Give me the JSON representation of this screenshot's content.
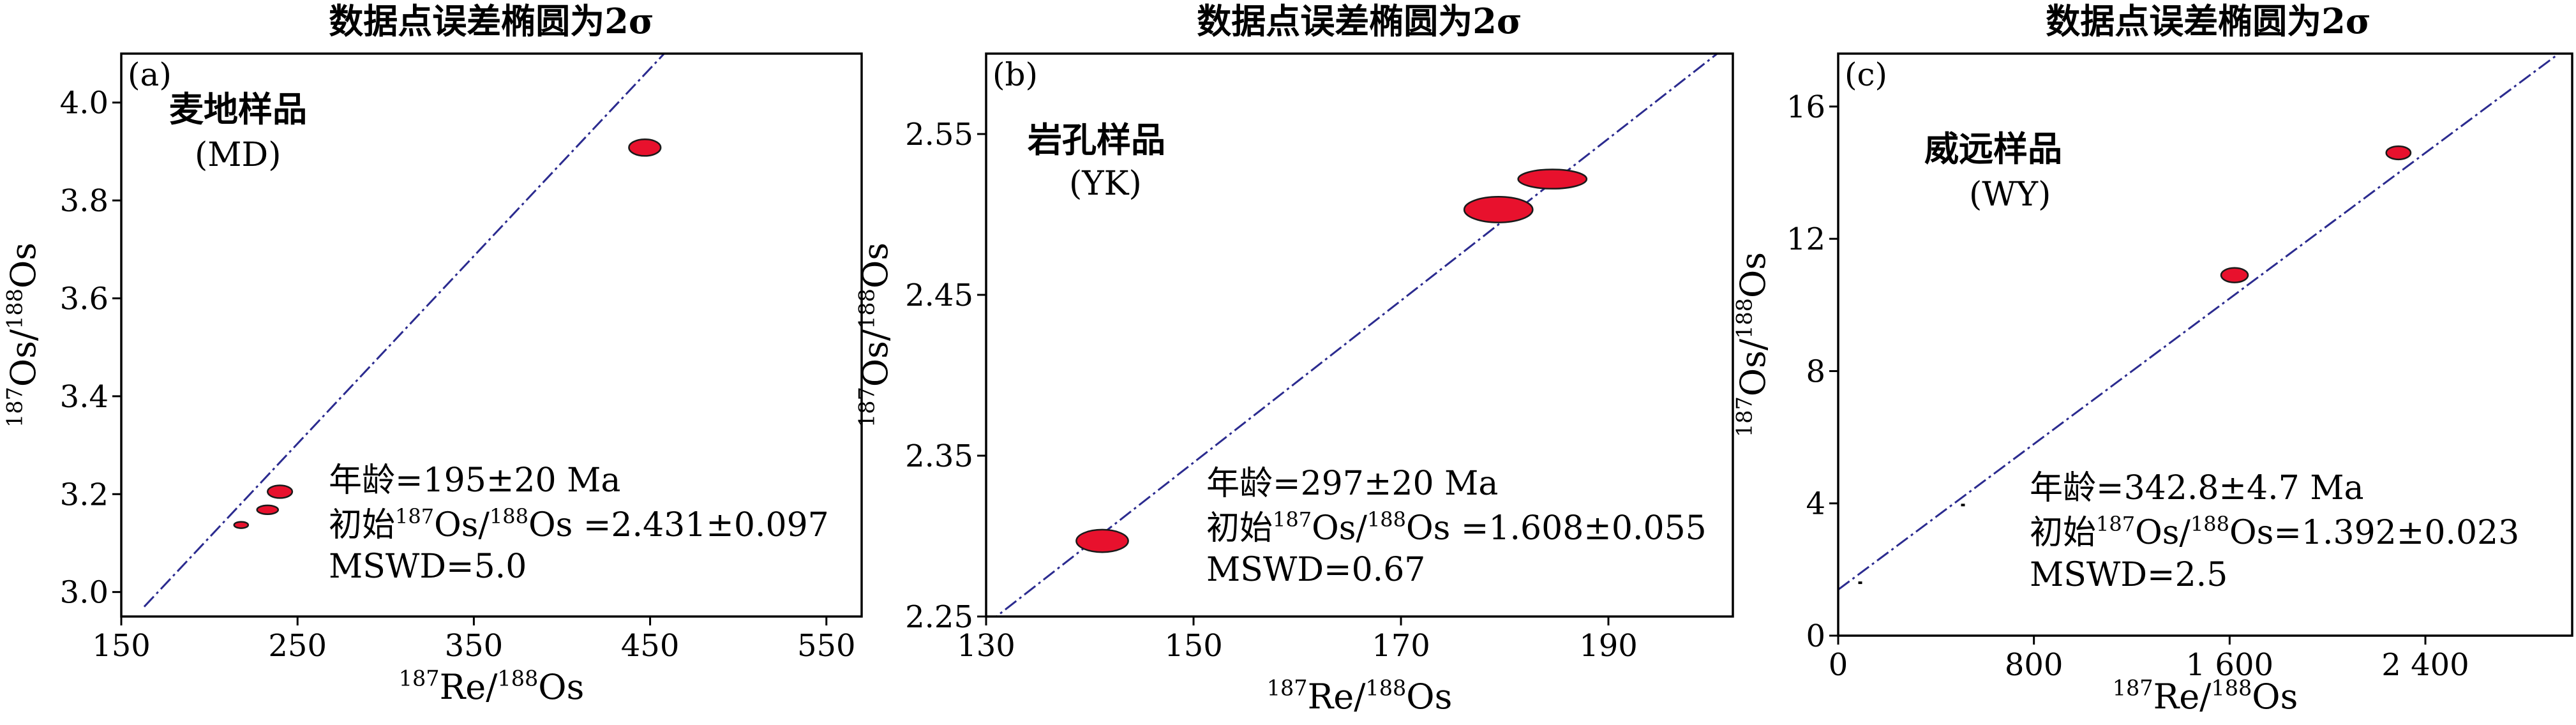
{
  "chart_data": [
    {
      "type": "scatter",
      "panel_label": "(a)",
      "title": "数据点误差椭圆为2σ",
      "sample_name": "麦地样品",
      "sample_code": "(MD)",
      "xlabel_sup": "187",
      "xlabel_a": "Re/",
      "xlabel_sup2": "188",
      "xlabel_b": "Os",
      "ylabel_sup": "187",
      "ylabel_a": "Os/",
      "ylabel_sup2": "188",
      "ylabel_b": "Os",
      "xlim": [
        150,
        570
      ],
      "ylim": [
        2.95,
        4.1
      ],
      "xticks": [
        150,
        250,
        350,
        450,
        550
      ],
      "xtick_labels": [
        "150",
        "250",
        "350",
        "450",
        "550"
      ],
      "yticks": [
        3.0,
        3.2,
        3.4,
        3.6,
        3.8,
        4.0
      ],
      "ytick_labels": [
        "3.0",
        "3.2",
        "3.4",
        "3.6",
        "3.8",
        "4.0"
      ],
      "points": [
        {
          "x": 218,
          "y": 3.137,
          "ex": 4,
          "ey": 0.006
        },
        {
          "x": 233,
          "y": 3.168,
          "ex": 6,
          "ey": 0.009
        },
        {
          "x": 240,
          "y": 3.205,
          "ex": 7,
          "ey": 0.013
        },
        {
          "x": 447,
          "y": 3.908,
          "ex": 9,
          "ey": 0.017
        }
      ],
      "isochron": {
        "x": [
          163,
          458
        ],
        "y": [
          2.97,
          4.1
        ]
      },
      "annotation": {
        "age_label": "年龄=195±20 Ma",
        "initial_prefix": "初始",
        "initial_sup1": "187",
        "initial_mid": "Os/",
        "initial_sup2": "188",
        "initial_rest": "Os =2.431±0.097",
        "mswd_label": "MSWD=5.0"
      }
    },
    {
      "type": "scatter",
      "panel_label": "(b)",
      "title": "数据点误差椭圆为2σ",
      "sample_name": "岩孔样品",
      "sample_code": "(YK)",
      "xlabel_sup": "187",
      "xlabel_a": "Re/",
      "xlabel_sup2": "188",
      "xlabel_b": "Os",
      "ylabel_sup": "187",
      "ylabel_a": "Os/",
      "ylabel_sup2": "188",
      "ylabel_b": "Os",
      "xlim": [
        130,
        202
      ],
      "ylim": [
        2.25,
        2.6
      ],
      "xticks": [
        130,
        150,
        170,
        190
      ],
      "xtick_labels": [
        "130",
        "150",
        "170",
        "190"
      ],
      "yticks": [
        2.25,
        2.35,
        2.45,
        2.55
      ],
      "ytick_labels": [
        "2.25",
        "2.35",
        "2.45",
        "2.55"
      ],
      "points": [
        {
          "x": 141.2,
          "y": 2.297,
          "ex": 2.5,
          "ey": 0.007
        },
        {
          "x": 179.4,
          "y": 2.503,
          "ex": 3.3,
          "ey": 0.008
        },
        {
          "x": 184.6,
          "y": 2.522,
          "ex": 3.3,
          "ey": 0.006
        }
      ],
      "isochron": {
        "x": [
          130,
          200.5
        ],
        "y": [
          2.245,
          2.6
        ]
      },
      "annotation": {
        "age_label": "年龄=297±20 Ma",
        "initial_prefix": "初始",
        "initial_sup1": "187",
        "initial_mid": "Os/",
        "initial_sup2": "188",
        "initial_rest": "Os =1.608±0.055",
        "mswd_label": "MSWD=0.67"
      }
    },
    {
      "type": "scatter",
      "panel_label": "(c)",
      "title": "数据点误差椭圆为2σ",
      "sample_name": "威远样品",
      "sample_code": "(WY)",
      "xlabel_sup": "187",
      "xlabel_a": "Re/",
      "xlabel_sup2": "188",
      "xlabel_b": "Os",
      "ylabel_sup": "187",
      "ylabel_a": "Os/",
      "ylabel_sup2": "188",
      "ylabel_b": "Os",
      "xlim": [
        0,
        3000
      ],
      "ylim": [
        0,
        17.6
      ],
      "xticks": [
        0,
        800,
        1600,
        2400
      ],
      "xtick_labels": [
        "0",
        "800",
        "1 600",
        "2 400"
      ],
      "yticks": [
        0,
        4,
        8,
        12,
        16
      ],
      "ytick_labels": [
        "0",
        "4",
        "8",
        "12",
        "16"
      ],
      "points": [
        {
          "x": 1620,
          "y": 10.9,
          "ex": 55,
          "ey": 0.22
        },
        {
          "x": 2290,
          "y": 14.6,
          "ex": 50,
          "ey": 0.2
        }
      ],
      "minor_marks": [
        {
          "x": 510,
          "y": 3.95
        },
        {
          "x": 90,
          "y": 1.6
        }
      ],
      "isochron": {
        "x": [
          0,
          3000
        ],
        "y": [
          1.392,
          17.9
        ]
      },
      "annotation": {
        "age_label": "年龄=342.8±4.7 Ma",
        "initial_prefix": "初始",
        "initial_sup1": "187",
        "initial_mid": "Os/",
        "initial_sup2": "188",
        "initial_rest": "Os=1.392±0.023",
        "mswd_label": "MSWD=2.5"
      }
    }
  ],
  "colors": {
    "ellipse_fill": "#e8112d",
    "ellipse_stroke": "#1a1a1a",
    "isochron_line": "#2b2b8f",
    "axis": "#000000"
  }
}
